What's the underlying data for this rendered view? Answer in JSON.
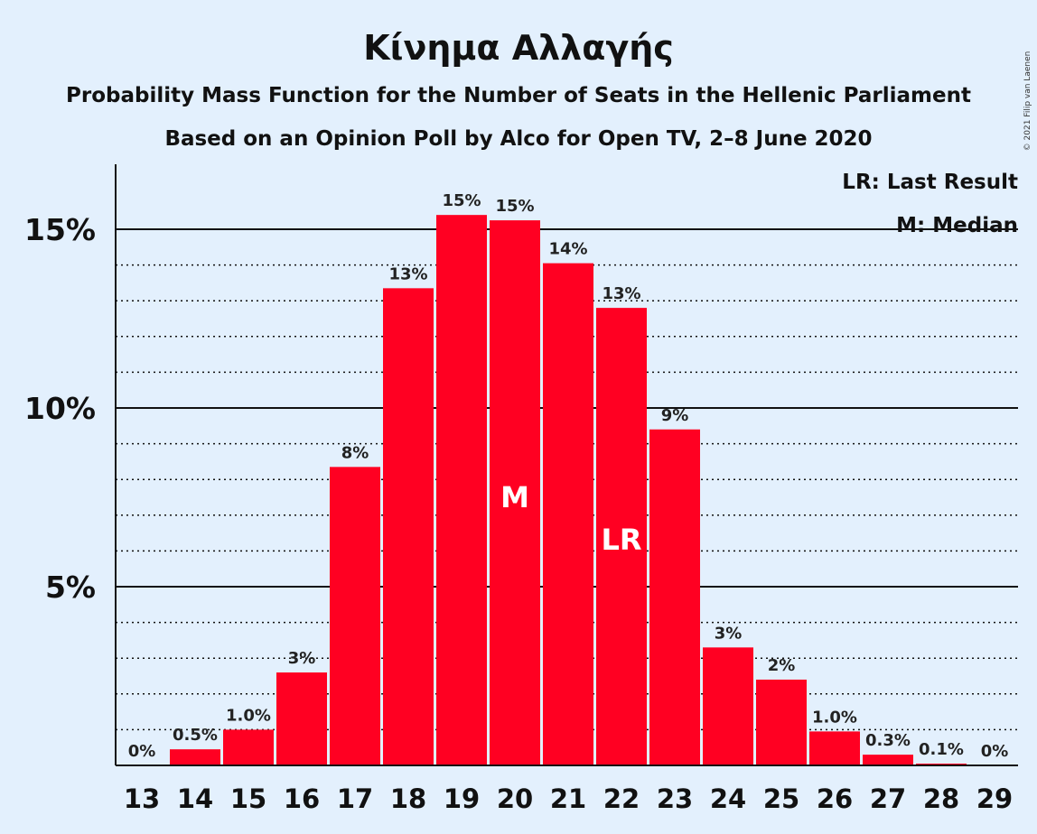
{
  "chart_data": {
    "type": "bar",
    "title": "Κίνημα Αλλαγής",
    "subtitle": "Probability Mass Function for the Number of Seats in the Hellenic Parliament",
    "subtitle2": "Based on an Opinion Poll by Alco for Open TV, 2–8 June 2020",
    "copyright": "© 2021 Filip van Laenen",
    "categories": [
      "13",
      "14",
      "15",
      "16",
      "17",
      "18",
      "19",
      "20",
      "21",
      "22",
      "23",
      "24",
      "25",
      "26",
      "27",
      "28",
      "29"
    ],
    "values": [
      0.0,
      0.45,
      1.0,
      2.6,
      8.35,
      13.35,
      15.4,
      15.25,
      14.05,
      12.8,
      9.4,
      3.3,
      2.4,
      0.95,
      0.3,
      0.05,
      0.0
    ],
    "labels": [
      "0%",
      "0.5%",
      "1.0%",
      "3%",
      "8%",
      "13%",
      "15%",
      "15%",
      "14%",
      "13%",
      "9%",
      "3%",
      "2%",
      "1.0%",
      "0.3%",
      "0.1%",
      "0%"
    ],
    "ylim": [
      0,
      16.8
    ],
    "yticks": [
      5,
      10,
      15
    ],
    "ytick_labels": [
      "5%",
      "10%",
      "15%"
    ],
    "minor_gridlines": [
      1,
      2,
      3,
      4,
      6,
      7,
      8,
      9,
      11,
      12,
      13,
      14
    ],
    "median_seat": "20",
    "median_marker": "M",
    "last_result_seat": "22",
    "last_result_marker": "LR",
    "legend": {
      "placement": "top-right",
      "last_result": "LR: Last Result",
      "median": "M: Median"
    },
    "colors": {
      "bar": "#ff0022",
      "background": "#e3f0fd",
      "text": "#111111"
    }
  }
}
